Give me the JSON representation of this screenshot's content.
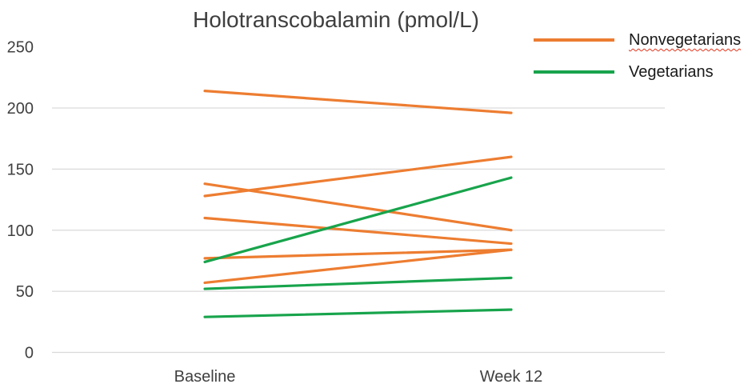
{
  "chart_data": {
    "type": "line",
    "title": "Holotranscobalamin (pmol/L)",
    "categories": [
      "Baseline",
      "Week 12"
    ],
    "xlabel": "",
    "ylabel": "",
    "ylim": [
      0,
      250
    ],
    "y_ticks": [
      0,
      50,
      100,
      150,
      200,
      250
    ],
    "gridlines": [
      0,
      50,
      100,
      150,
      200
    ],
    "grid": true,
    "legend_position": "top-right",
    "legend": [
      {
        "label": "Nonvegetarians",
        "color": "#ED7D31",
        "spellcheck_underline": true
      },
      {
        "label": "Vegetarians",
        "color": "#18A44C",
        "spellcheck_underline": false
      }
    ],
    "series": [
      {
        "group": "Nonvegetarians",
        "values": [
          214,
          196
        ]
      },
      {
        "group": "Nonvegetarians",
        "values": [
          138,
          100
        ]
      },
      {
        "group": "Nonvegetarians",
        "values": [
          128,
          160
        ]
      },
      {
        "group": "Nonvegetarians",
        "values": [
          110,
          89
        ]
      },
      {
        "group": "Nonvegetarians",
        "values": [
          77,
          84
        ]
      },
      {
        "group": "Nonvegetarians",
        "values": [
          57,
          84
        ]
      },
      {
        "group": "Vegetarians",
        "values": [
          74,
          143
        ]
      },
      {
        "group": "Vegetarians",
        "values": [
          52,
          61
        ]
      },
      {
        "group": "Vegetarians",
        "values": [
          29,
          35
        ]
      }
    ],
    "colors": {
      "gridline": "#D9D9D9",
      "axis_text": "#404040",
      "title_text": "#3F3F3F",
      "legend_text": "#1A1A1A",
      "spellcheck_squiggle": "#E0351B"
    }
  }
}
